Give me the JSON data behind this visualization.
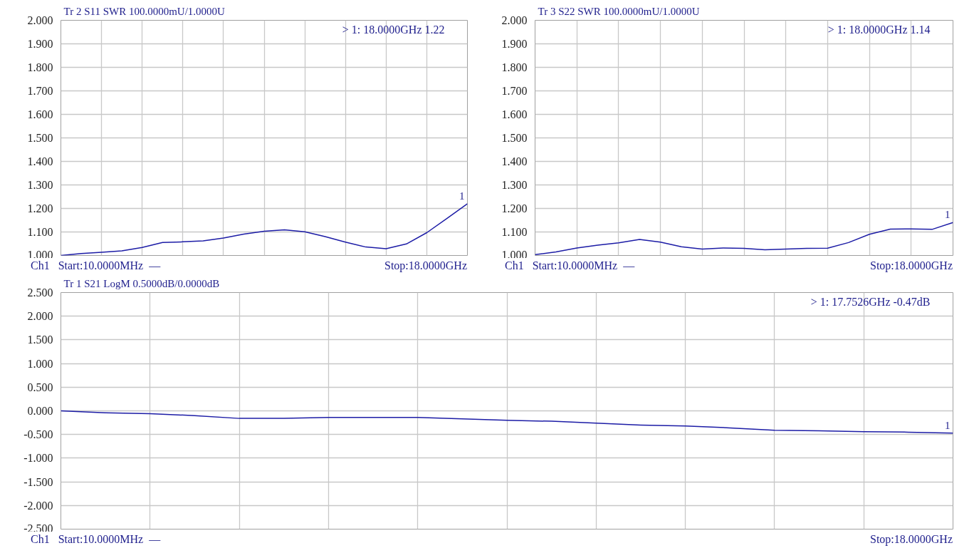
{
  "chart_data": [
    {
      "type": "line",
      "title": "Tr 2  S11 SWR 100.0000mU/1.0000U",
      "annotations": [
        "> 1:   18.0000GHz  1.22",
        "Ch1   Start:10.0000MHz  —",
        "Stop:18.0000GHz",
        {
          "text": "1",
          "y": 1.22
        }
      ],
      "categories": [
        null,
        null,
        null,
        null,
        null,
        null,
        null,
        null,
        null,
        null,
        null,
        null,
        null,
        null,
        null,
        null,
        null,
        null,
        null,
        null,
        null
      ],
      "series": [
        {
          "color": "#1c1ca6",
          "values": [
            1.0,
            1.008,
            1.014,
            1.02,
            1.034,
            1.055,
            1.058,
            1.062,
            1.074,
            1.091,
            1.103,
            1.109,
            1.101,
            1.08,
            1.057,
            1.036,
            1.029,
            1.049,
            1.097,
            1.158,
            1.22
          ]
        }
      ],
      "ylim": [
        1,
        2
      ],
      "yticks": [
        {
          "value": 1,
          "label": "1.000"
        },
        {
          "value": 1.1,
          "label": "1.100"
        },
        {
          "value": 1.2,
          "label": "1.200"
        },
        {
          "value": 1.3,
          "label": "1.300"
        },
        {
          "value": 1.4,
          "label": "1.400"
        },
        {
          "value": 1.5,
          "label": "1.500"
        },
        {
          "value": 1.6,
          "label": "1.600"
        },
        {
          "value": 1.7,
          "label": "1.700"
        },
        {
          "value": 1.8,
          "label": "1.800"
        },
        {
          "value": 1.9,
          "label": "1.900"
        },
        {
          "value": 2,
          "label": "2.000"
        }
      ],
      "grid": true,
      "tick_labels": "y"
    },
    {
      "type": "line",
      "title": "Tr 3  S22 SWR 100.0000mU/1.0000U",
      "annotations": [
        "> 1:   18.0000GHz  1.14",
        "Ch1   Start:10.0000MHz  —",
        "Stop:18.0000GHz",
        {
          "text": "1",
          "y": 1.14
        }
      ],
      "categories": [
        null,
        null,
        null,
        null,
        null,
        null,
        null,
        null,
        null,
        null,
        null,
        null,
        null,
        null,
        null,
        null,
        null,
        null,
        null,
        null,
        null
      ],
      "series": [
        {
          "color": "#1c1ca6",
          "values": [
            1.004,
            1.015,
            1.032,
            1.044,
            1.054,
            1.068,
            1.057,
            1.037,
            1.027,
            1.032,
            1.03,
            1.024,
            1.027,
            1.03,
            1.031,
            1.055,
            1.09,
            1.112,
            1.113,
            1.111,
            1.14
          ]
        }
      ],
      "ylim": [
        1,
        2
      ],
      "yticks": [
        {
          "value": 1,
          "label": "1.000"
        },
        {
          "value": 1.1,
          "label": "1.100"
        },
        {
          "value": 1.2,
          "label": "1.200"
        },
        {
          "value": 1.3,
          "label": "1.300"
        },
        {
          "value": 1.4,
          "label": "1.400"
        },
        {
          "value": 1.5,
          "label": "1.500"
        },
        {
          "value": 1.6,
          "label": "1.600"
        },
        {
          "value": 1.7,
          "label": "1.700"
        },
        {
          "value": 1.8,
          "label": "1.800"
        },
        {
          "value": 1.9,
          "label": "1.900"
        },
        {
          "value": 2,
          "label": "2.000"
        }
      ],
      "grid": true,
      "tick_labels": "y"
    },
    {
      "type": "line",
      "title": "Tr 1  S21 LogM 0.5000dB/0.0000dB",
      "annotations": [
        "> 1:   17.7526GHz  -0.47dB",
        "Ch1   Start:10.0000MHz  —",
        "Stop:18.0000GHz",
        {
          "text": "1",
          "y": -0.47
        }
      ],
      "categories": [
        null,
        null,
        null,
        null,
        null,
        null,
        null,
        null,
        null,
        null,
        null,
        null,
        null,
        null,
        null,
        null,
        null,
        null,
        null,
        null,
        null
      ],
      "series": [
        {
          "color": "#1c1ca6",
          "values": [
            0.0,
            -0.04,
            -0.06,
            -0.1,
            -0.16,
            -0.16,
            -0.14,
            -0.14,
            -0.14,
            -0.17,
            -0.2,
            -0.22,
            -0.26,
            -0.3,
            -0.32,
            -0.36,
            -0.41,
            -0.42,
            -0.44,
            -0.45,
            -0.47
          ]
        }
      ],
      "ylim": [
        -2.5,
        2.5
      ],
      "yticks": [
        {
          "value": -2.5,
          "label": "-2.500"
        },
        {
          "value": -2,
          "label": "-2.000"
        },
        {
          "value": -1.5,
          "label": "-1.500"
        },
        {
          "value": -1,
          "label": "-1.000"
        },
        {
          "value": -0.5,
          "label": "-0.500"
        },
        {
          "value": 0,
          "label": "0.000"
        },
        {
          "value": 0.5,
          "label": "0.500"
        },
        {
          "value": 1,
          "label": "1.000"
        },
        {
          "value": 1.5,
          "label": "1.500"
        },
        {
          "value": 2,
          "label": "2.000"
        },
        {
          "value": 2.5,
          "label": "2.500"
        }
      ],
      "grid": true,
      "tick_labels": "y"
    }
  ]
}
